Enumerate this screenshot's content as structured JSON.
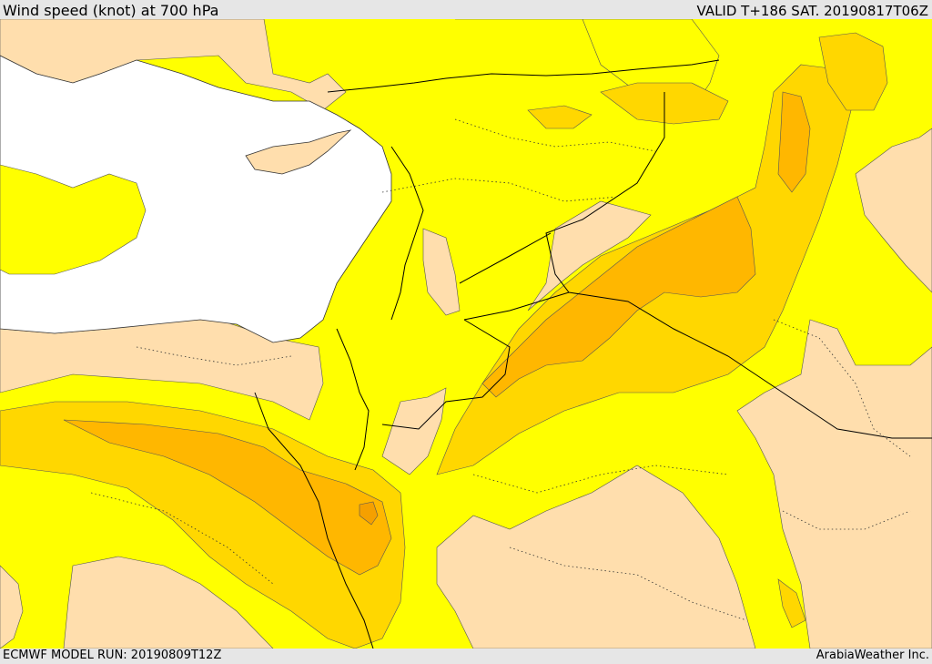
{
  "header": {
    "title": "Wind speed (knot) at 700 hPa",
    "valid": "VALID T+186 SAT. 20190817T06Z"
  },
  "footer": {
    "model_run": "ECMWF MODEL RUN: 20190809T12Z",
    "credit": "ArabiaWeather Inc."
  },
  "colors": {
    "bin_lowest": "#ffdead",
    "bin_low": "#ffff00",
    "bin_mid": "#ffd700",
    "bin_high": "#ffb700",
    "bin_highest": "#f5a000",
    "sea_uncovered": "#ffffff",
    "frame": "#e6e6e6"
  }
}
